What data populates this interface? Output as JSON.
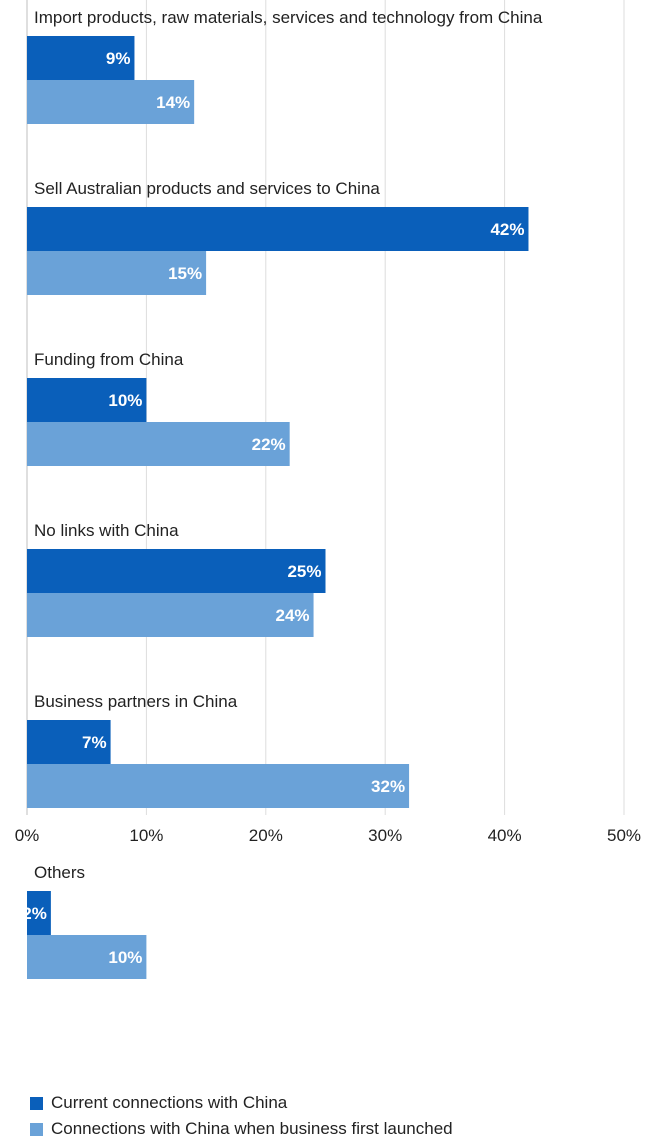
{
  "chart_data": {
    "type": "bar",
    "orientation": "horizontal",
    "categories": [
      "Import products, raw materials, services and technology from China",
      "Sell Australian products and services to China",
      "Funding from China",
      "No links with China",
      "Business partners in China",
      "Others"
    ],
    "series": [
      {
        "name": "Current connections with China",
        "values": [
          9,
          42,
          10,
          25,
          7,
          2
        ],
        "color": "#0a5fba"
      },
      {
        "name": "Connections with China when business first launched",
        "values": [
          14,
          15,
          22,
          24,
          32,
          10
        ],
        "color": "#6aa2d8"
      }
    ],
    "value_labels": [
      [
        "9%",
        "42%",
        "10%",
        "25%",
        "7%",
        "2%"
      ],
      [
        "14%",
        "15%",
        "22%",
        "24%",
        "32%",
        "10%"
      ]
    ],
    "xlim": [
      0,
      50
    ],
    "x_ticks": [
      "0%",
      "10%",
      "20%",
      "30%",
      "40%",
      "50%"
    ],
    "grid": true,
    "legend_position": "bottom"
  }
}
